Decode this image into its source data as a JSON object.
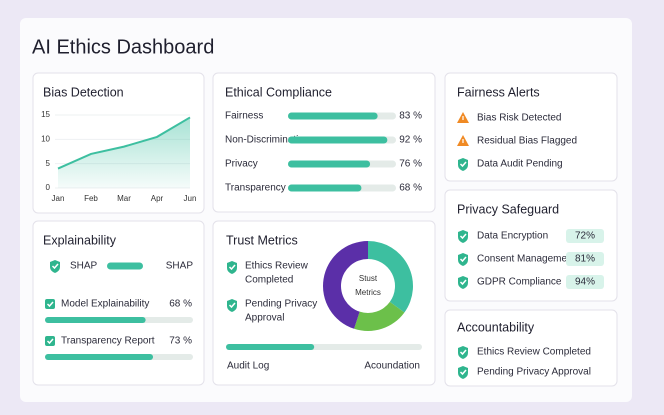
{
  "header": {
    "title": "AI Ethics Dashboard"
  },
  "bias_detection": {
    "title": "Bias Detection",
    "chart": {
      "type": "line",
      "categories": [
        "Jan",
        "Feb",
        "Mar",
        "Apr",
        "Jun"
      ],
      "values": [
        4,
        7,
        8.5,
        10.5,
        14.5
      ],
      "color": "#3dbfa0",
      "ylim": [
        0,
        15
      ],
      "yticks": [
        0,
        5,
        10,
        15
      ],
      "grid": true
    }
  },
  "ethical_compliance": {
    "title": "Ethical Compliance",
    "color": "#3dbfa0",
    "rows": [
      {
        "label": "Fairness",
        "value": 83,
        "value_label": "83 %"
      },
      {
        "label": "Non-Discrimination",
        "value": 92,
        "value_label": "92 %"
      },
      {
        "label": "Privacy",
        "value": 76,
        "value_label": "76 %"
      },
      {
        "label": "Transparency",
        "value": 68,
        "value_label": "68 %"
      }
    ]
  },
  "fairness_alerts": {
    "title": "Fairness Alerts",
    "items": [
      {
        "label": "Bias Risk Detected",
        "level": "warning"
      },
      {
        "label": "Residual Bias Flagged",
        "level": "warning"
      },
      {
        "label": "Data Audit Pending",
        "level": "ok"
      }
    ]
  },
  "explainability": {
    "title": "Explainability",
    "shap_label": "SHAP",
    "shap_value_label": "SHAP",
    "color": "#3dbfa0",
    "rows": [
      {
        "label": "Model Explainability",
        "value": 68,
        "value_label": "68 %"
      },
      {
        "label": "Transparency Report",
        "value": 73,
        "value_label": "73 %"
      }
    ]
  },
  "trust_metrics": {
    "title": "Trust Metrics",
    "items": [
      [
        "Ethics Review",
        "Completed"
      ],
      [
        "Pending Privacy",
        "Approval"
      ]
    ],
    "donut": {
      "type": "pie",
      "center_label": [
        "Stust",
        "Metrics"
      ],
      "values": [
        35,
        20,
        45
      ],
      "colors": [
        "#3dbfa0",
        "#6cc04a",
        "#5b2fa8"
      ]
    },
    "progress": 45,
    "footer_left": "Audit Log",
    "footer_right": "Acoundation"
  },
  "privacy_safeguard": {
    "title": "Privacy Safeguard",
    "rows": [
      {
        "label": "Data Encryption",
        "value": 72,
        "value_label": "72%"
      },
      {
        "label": "Consent Management",
        "value": 81,
        "value_label": "81%"
      },
      {
        "label": "GDPR Compliance",
        "value": 94,
        "value_label": "94%"
      }
    ]
  },
  "accountability": {
    "title": "Accountability",
    "items": [
      "Ethics Review Completed",
      "Pending Privacy Approval"
    ]
  }
}
